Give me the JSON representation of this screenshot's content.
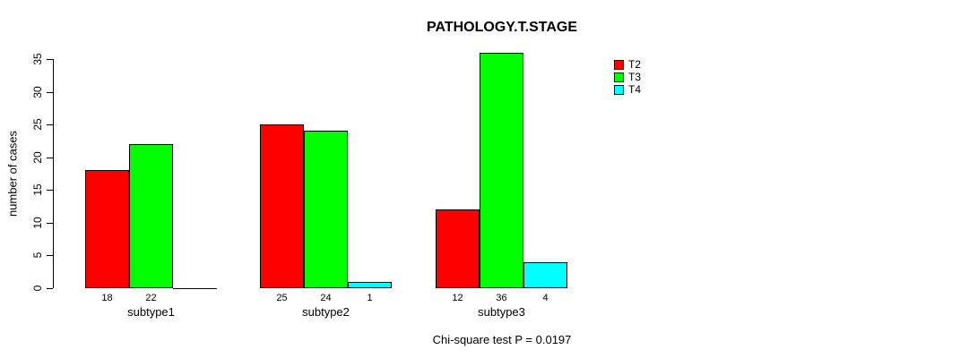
{
  "chart_data": {
    "type": "bar",
    "title": "PATHOLOGY.T.STAGE",
    "ylabel": "number of cases",
    "xlabel": "",
    "categories": [
      "subtype1",
      "subtype2",
      "subtype3"
    ],
    "series": [
      {
        "name": "T2",
        "color": "#ff0000",
        "values": [
          18,
          25,
          12
        ]
      },
      {
        "name": "T3",
        "color": "#00ff00",
        "values": [
          22,
          24,
          36
        ]
      },
      {
        "name": "T4",
        "color": "#00ffff",
        "values": [
          0,
          1,
          4
        ]
      }
    ],
    "bar_value_labels": [
      [
        "18",
        "25",
        "12"
      ],
      [
        "22",
        "24",
        "36"
      ],
      [
        "",
        "1",
        "4"
      ]
    ],
    "yticks": [
      0,
      5,
      10,
      15,
      20,
      25,
      30,
      35
    ],
    "ylim": [
      0,
      35
    ],
    "grid": false,
    "legend_position": "right",
    "footnote": "Chi-square test P = 0.0197"
  }
}
